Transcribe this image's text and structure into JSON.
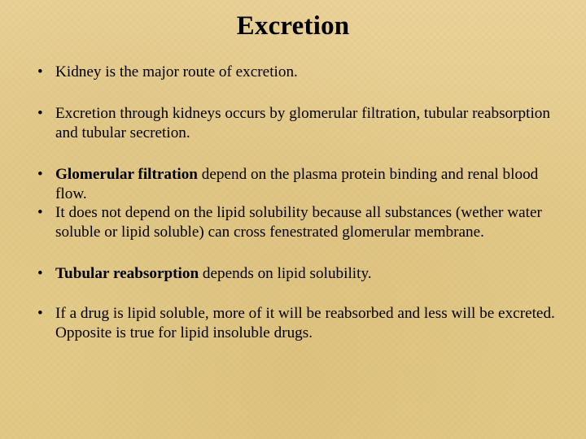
{
  "background_color": "#e6cd8f",
  "text_color": "#000000",
  "title": {
    "text": "Excretion",
    "font_size_pt": 25,
    "font_weight": "bold",
    "align": "center"
  },
  "body_font": {
    "family": "Times New Roman",
    "size_pt": 14.5,
    "color": "#000000"
  },
  "bullets": [
    {
      "runs": [
        {
          "text": "Kidney is the major route of excretion.",
          "bold": false
        }
      ],
      "gap_after": "large"
    },
    {
      "runs": [
        {
          "text": "Excretion through kidneys occurs by glomerular  filtration, tubular reabsorption and tubular secretion.",
          "bold": false
        }
      ],
      "gap_after": "large"
    },
    {
      "runs": [
        {
          "text": "Glomerular  filtration",
          "bold": true
        },
        {
          "text": " depend on the plasma protein binding and renal blood flow.",
          "bold": false
        }
      ],
      "gap_after": "none"
    },
    {
      "runs": [
        {
          "text": "It does not depend on the lipid solubility because all substances (wether water soluble or lipid soluble) can cross fenestrated glomerular membrane.",
          "bold": false
        }
      ],
      "gap_after": "large"
    },
    {
      "runs": [
        {
          "text": "Tubular reabsorption ",
          "bold": true
        },
        {
          "text": " depends on lipid solubility.",
          "bold": false
        }
      ],
      "gap_after": "med"
    },
    {
      "runs": [
        {
          "text": "If a drug is lipid soluble, more of it will be reabsorbed and less will be excreted. Opposite is true for lipid insoluble drugs.",
          "bold": false
        }
      ],
      "gap_after": "none"
    }
  ]
}
